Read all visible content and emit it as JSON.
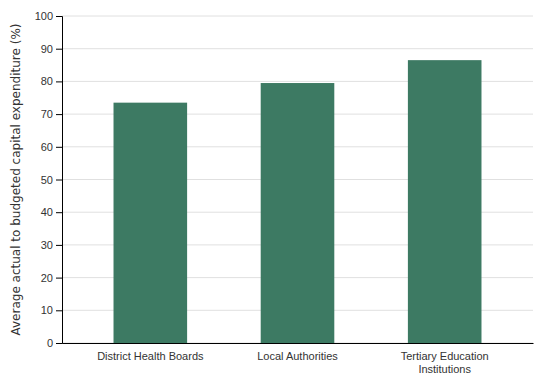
{
  "chart_data": {
    "type": "bar",
    "categories": [
      "District Health Boards",
      "Local Authorities",
      "Tertiary Education\nInstitutions"
    ],
    "values": [
      73.5,
      79.5,
      86.5
    ],
    "color": "#3d7a63",
    "ylabel": "Average actual to budgeted capital expenditure (%)",
    "ylim": [
      0,
      100
    ],
    "yticks": [
      0,
      10,
      20,
      30,
      40,
      50,
      60,
      70,
      80,
      90,
      100
    ],
    "grid": true
  }
}
